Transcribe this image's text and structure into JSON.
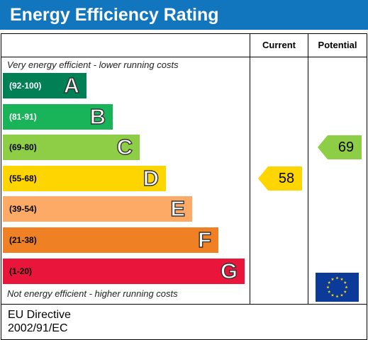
{
  "title": "Energy Efficiency Rating",
  "columns": {
    "current": "Current",
    "potential": "Potential"
  },
  "top_note": "Very energy efficient - lower running costs",
  "bottom_note": "Not energy efficient - higher running costs",
  "footer": {
    "line1": "EU Directive",
    "line2": "2002/91/EC"
  },
  "colors": {
    "title_bg": "#1276bf",
    "band_A": "#008054",
    "band_B": "#19b459",
    "band_C": "#8dce46",
    "band_D": "#ffd500",
    "band_E": "#fcaa65",
    "band_F": "#ef8023",
    "band_G": "#e9153b",
    "flag_blue": "#0b3a99",
    "flag_stars": "#ffdd00"
  },
  "icons": {
    "eu_flag": "eu-flag-icon"
  },
  "chart_data": {
    "type": "bar",
    "bands": [
      {
        "letter": "A",
        "range": "(92-100)",
        "min": 92,
        "max": 100,
        "color": "#008054",
        "range_text_color": "#ffffff"
      },
      {
        "letter": "B",
        "range": "(81-91)",
        "min": 81,
        "max": 91,
        "color": "#19b459",
        "range_text_color": "#ffffff"
      },
      {
        "letter": "C",
        "range": "(69-80)",
        "min": 69,
        "max": 80,
        "color": "#8dce46",
        "range_text_color": "#000000"
      },
      {
        "letter": "D",
        "range": "(55-68)",
        "min": 55,
        "max": 68,
        "color": "#ffd500",
        "range_text_color": "#000000"
      },
      {
        "letter": "E",
        "range": "(39-54)",
        "min": 39,
        "max": 54,
        "color": "#fcaa65",
        "range_text_color": "#000000"
      },
      {
        "letter": "F",
        "range": "(21-38)",
        "min": 21,
        "max": 38,
        "color": "#ef8023",
        "range_text_color": "#000000"
      },
      {
        "letter": "G",
        "range": "(1-20)",
        "min": 1,
        "max": 20,
        "color": "#e9153b",
        "range_text_color": "#000000"
      }
    ],
    "series": [
      {
        "name": "Current",
        "value": 58,
        "band": "D",
        "color": "#ffd500"
      },
      {
        "name": "Potential",
        "value": 69,
        "band": "C",
        "color": "#8dce46"
      }
    ]
  }
}
